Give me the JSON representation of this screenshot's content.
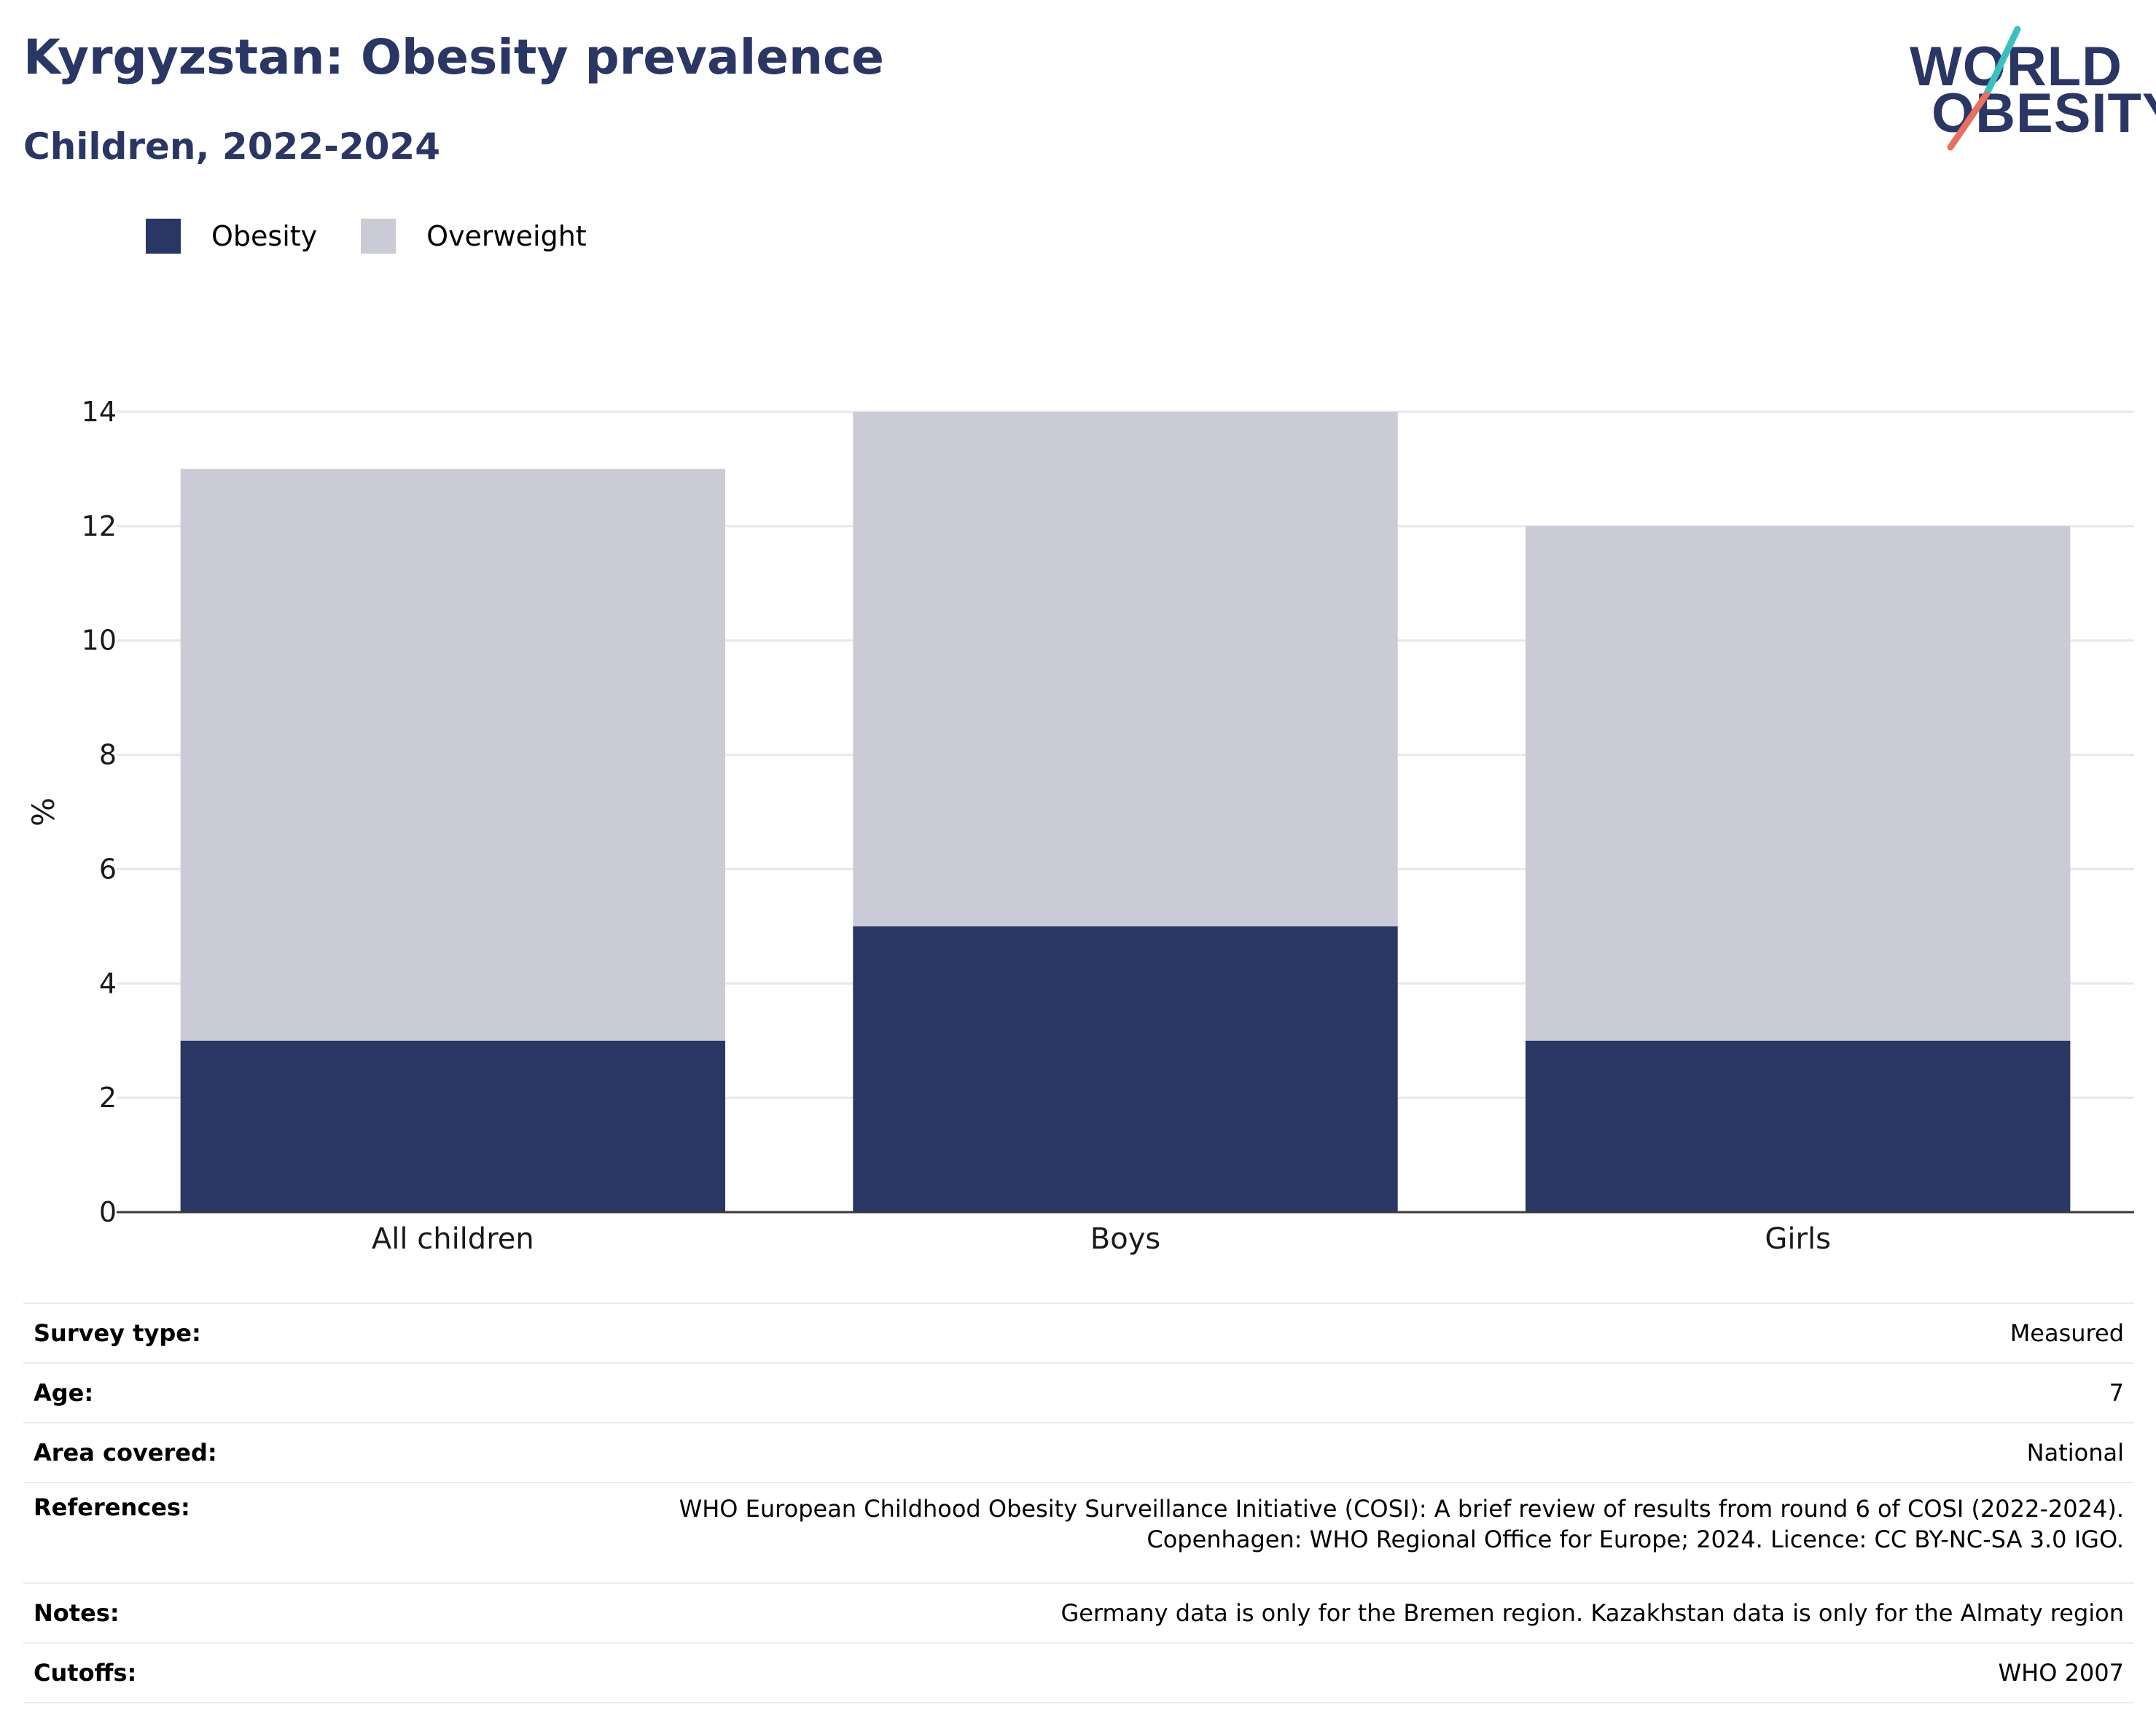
{
  "header": {
    "title": "Kyrgyzstan: Obesity prevalence",
    "subtitle": "Children, 2022-2024"
  },
  "logo": {
    "line1": "WORLD",
    "line2": "OBESITY",
    "slash_colors": [
      "#3bbfbf",
      "#e8705f"
    ]
  },
  "colors": {
    "obesity": "#2a3663",
    "overweight": "#cacbd7",
    "grid": "#e6e8ee",
    "axis": "#3a3a3a"
  },
  "chart_data": {
    "type": "bar",
    "stacked": true,
    "categories": [
      "All children",
      "Boys",
      "Girls"
    ],
    "series": [
      {
        "name": "Obesity",
        "values": [
          3,
          5,
          3
        ]
      },
      {
        "name": "Overweight",
        "values": [
          10,
          9,
          9
        ]
      }
    ],
    "ylabel": "%",
    "yticks": [
      0,
      2,
      4,
      6,
      8,
      10,
      12,
      14
    ],
    "ylim": [
      0,
      14
    ],
    "grid": true,
    "legend_position": "top-left"
  },
  "info": [
    {
      "label": "Survey type:",
      "value": [
        "Measured"
      ]
    },
    {
      "label": "Age:",
      "value": [
        "7"
      ]
    },
    {
      "label": "Area covered:",
      "value": [
        "National"
      ]
    },
    {
      "label": "References:",
      "value": [
        "WHO European Childhood Obesity Surveillance Initiative (COSI): A brief review of results from round 6 of COSI (2022-2024).",
        "Copenhagen: WHO Regional Office for Europe; 2024. Licence: CC BY-NC-SA 3.0 IGO."
      ]
    },
    {
      "label": "Notes:",
      "value": [
        "Germany data is only for the Bremen region. Kazakhstan data is only for the Almaty region"
      ]
    },
    {
      "label": "Cutoffs:",
      "value": [
        "WHO 2007"
      ]
    }
  ]
}
